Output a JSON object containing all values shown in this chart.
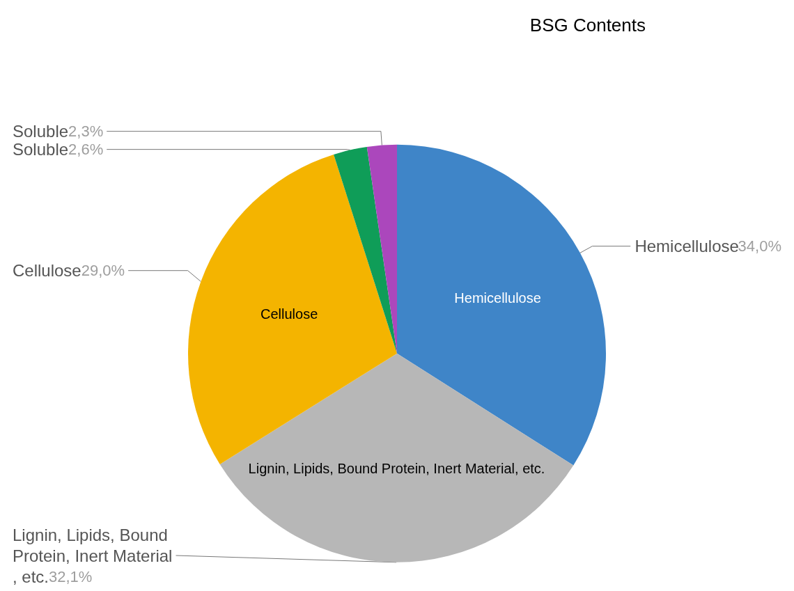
{
  "chart_data": {
    "type": "pie",
    "title": "BSG Contents",
    "categories": [
      "Hemicellulose",
      "Lignin, Lipids, Bound Protein, Inert Material, etc.",
      "Cellulose",
      "Soluble",
      "Soluble"
    ],
    "values": [
      34.0,
      32.1,
      29.0,
      2.6,
      2.3
    ],
    "value_labels": [
      "34,0%",
      "32,1%",
      "29,0%",
      "2,6%",
      "2,3%"
    ],
    "colors": [
      "#3f85c8",
      "#b7b7b7",
      "#f4b400",
      "#0f9d58",
      "#ab47bc"
    ],
    "legend": false
  }
}
